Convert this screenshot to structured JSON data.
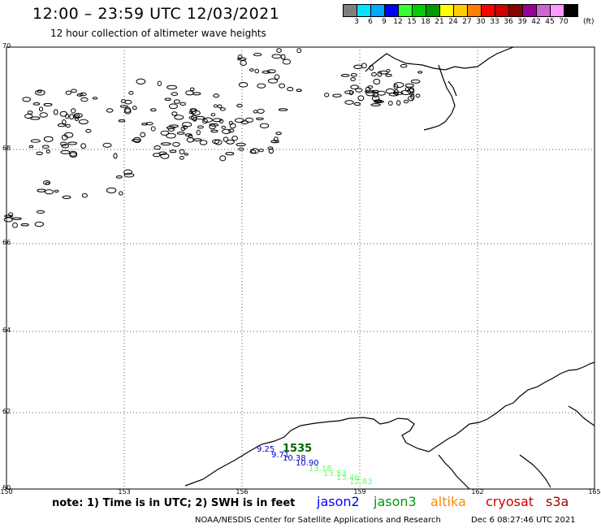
{
  "title": "12:00 – 23:59 UTC 12/03/2021",
  "subtitle": "12 hour collection of altimeter wave heights",
  "legend": {
    "colors": [
      "#7f7f7f",
      "#00e5ff",
      "#00a8ff",
      "#0000ff",
      "#33ff33",
      "#00cc00",
      "#009900",
      "#ffff00",
      "#ffcc00",
      "#ff8000",
      "#ff0000",
      "#cc0000",
      "#8b0000",
      "#990099",
      "#cc66cc",
      "#ff99ff",
      "#000000"
    ],
    "labels": [
      "3",
      "6",
      "9",
      "12",
      "15",
      "18",
      "21",
      "24",
      "27",
      "30",
      "33",
      "36",
      "39",
      "42",
      "45",
      "70"
    ],
    "unit": "(ft)"
  },
  "axes": {
    "lat_labels": [
      "70",
      "68",
      "66",
      "64",
      "62",
      "60"
    ],
    "lon_labels": [
      "150",
      "153",
      "156",
      "159",
      "162",
      "165"
    ]
  },
  "observations": [
    {
      "value": "9.25",
      "sat": "jason2",
      "color": "#0000cc"
    },
    {
      "value": "9.71",
      "sat": "jason2",
      "color": "#0000cc"
    },
    {
      "value": "10.38",
      "sat": "jason2",
      "color": "#0000cc"
    },
    {
      "value": "10.90",
      "sat": "jason2",
      "color": "#0000cc"
    },
    {
      "value": "13.18",
      "sat": "jason3",
      "color": "#66ff66"
    },
    {
      "value": "13.53",
      "sat": "jason3",
      "color": "#66ff66"
    },
    {
      "value": "13.46",
      "sat": "jason3",
      "color": "#66ff66"
    },
    {
      "value": "12.83",
      "sat": "jason3",
      "color": "#66ff66"
    }
  ],
  "time_tag": {
    "text": "1535",
    "color": "#006600"
  },
  "note": "note:  1) Time is in UTC;  2) SWH is in feet",
  "satellites": [
    {
      "name": "jason2",
      "color": "#0000ff"
    },
    {
      "name": "jason3",
      "color": "#009900"
    },
    {
      "name": "altika",
      "color": "#ff8800"
    },
    {
      "name": "cryosat",
      "color": "#cc0000"
    },
    {
      "name": "s3a",
      "color": "#990000"
    }
  ],
  "credit": "NOAA/NESDIS Center for Satellite Applications and Research",
  "date": "Dec  6 08:27:46 UTC 2021"
}
